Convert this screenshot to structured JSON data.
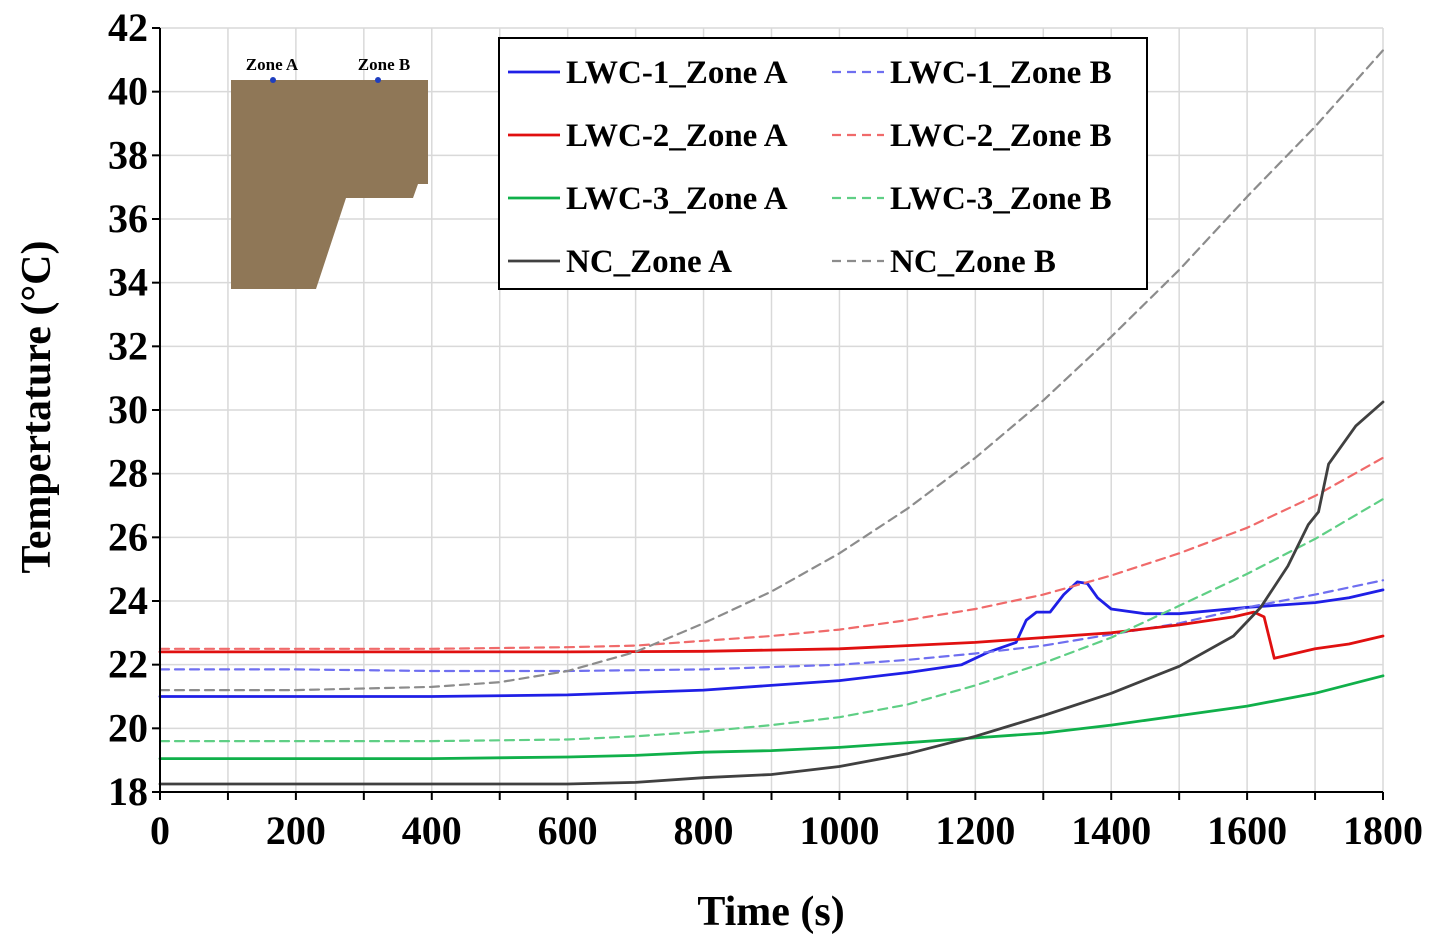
{
  "chart_data": {
    "type": "line",
    "xlabel": "Time (s)",
    "ylabel": "Tempertature (°C)",
    "xlim": [
      0,
      1800
    ],
    "ylim": [
      18,
      42
    ],
    "xticks": [
      0,
      200,
      400,
      600,
      800,
      1000,
      1200,
      1400,
      1600,
      1800
    ],
    "yticks": [
      18,
      20,
      22,
      24,
      26,
      28,
      30,
      32,
      34,
      36,
      38,
      40,
      42
    ],
    "grid": true,
    "legend_position": "top-right",
    "inset": {
      "zone_a_label": "Zone A",
      "zone_b_label": "Zone B",
      "fill_color": "#8F7757",
      "marker_color": "#1f3fbf"
    },
    "series": [
      {
        "name": "LWC-1_Zone A",
        "color": "#1f1fe6",
        "dash": "solid",
        "points": [
          [
            0,
            21.0
          ],
          [
            200,
            21.0
          ],
          [
            400,
            21.0
          ],
          [
            600,
            21.05
          ],
          [
            800,
            21.2
          ],
          [
            1000,
            21.5
          ],
          [
            1100,
            21.75
          ],
          [
            1180,
            22.0
          ],
          [
            1220,
            22.4
          ],
          [
            1260,
            22.7
          ],
          [
            1275,
            23.4
          ],
          [
            1290,
            23.65
          ],
          [
            1310,
            23.65
          ],
          [
            1330,
            24.2
          ],
          [
            1350,
            24.6
          ],
          [
            1365,
            24.55
          ],
          [
            1380,
            24.1
          ],
          [
            1400,
            23.75
          ],
          [
            1450,
            23.6
          ],
          [
            1500,
            23.6
          ],
          [
            1600,
            23.8
          ],
          [
            1700,
            23.95
          ],
          [
            1750,
            24.1
          ],
          [
            1800,
            24.35
          ]
        ]
      },
      {
        "name": "LWC-1_Zone B",
        "color": "#6f6ff0",
        "dash": "dashed",
        "points": [
          [
            0,
            21.85
          ],
          [
            200,
            21.85
          ],
          [
            400,
            21.8
          ],
          [
            600,
            21.8
          ],
          [
            800,
            21.85
          ],
          [
            1000,
            22.0
          ],
          [
            1100,
            22.15
          ],
          [
            1200,
            22.35
          ],
          [
            1300,
            22.6
          ],
          [
            1400,
            22.95
          ],
          [
            1500,
            23.3
          ],
          [
            1600,
            23.8
          ],
          [
            1700,
            24.2
          ],
          [
            1800,
            24.65
          ]
        ]
      },
      {
        "name": "LWC-2_Zone A",
        "color": "#e01010",
        "dash": "solid",
        "points": [
          [
            0,
            22.4
          ],
          [
            200,
            22.4
          ],
          [
            400,
            22.4
          ],
          [
            600,
            22.4
          ],
          [
            800,
            22.42
          ],
          [
            1000,
            22.5
          ],
          [
            1200,
            22.7
          ],
          [
            1400,
            23.0
          ],
          [
            1500,
            23.25
          ],
          [
            1580,
            23.5
          ],
          [
            1610,
            23.65
          ],
          [
            1625,
            23.5
          ],
          [
            1640,
            22.2
          ],
          [
            1660,
            22.3
          ],
          [
            1700,
            22.5
          ],
          [
            1750,
            22.65
          ],
          [
            1800,
            22.9
          ]
        ]
      },
      {
        "name": "LWC-2_Zone B",
        "color": "#f06a6a",
        "dash": "dashed",
        "points": [
          [
            0,
            22.5
          ],
          [
            200,
            22.5
          ],
          [
            400,
            22.5
          ],
          [
            600,
            22.55
          ],
          [
            700,
            22.6
          ],
          [
            800,
            22.75
          ],
          [
            900,
            22.9
          ],
          [
            1000,
            23.1
          ],
          [
            1100,
            23.4
          ],
          [
            1200,
            23.75
          ],
          [
            1300,
            24.2
          ],
          [
            1400,
            24.8
          ],
          [
            1500,
            25.5
          ],
          [
            1600,
            26.3
          ],
          [
            1700,
            27.3
          ],
          [
            1800,
            28.5
          ]
        ]
      },
      {
        "name": "LWC-3_Zone A",
        "color": "#10b04a",
        "dash": "solid",
        "points": [
          [
            0,
            19.05
          ],
          [
            200,
            19.05
          ],
          [
            400,
            19.05
          ],
          [
            600,
            19.1
          ],
          [
            700,
            19.15
          ],
          [
            800,
            19.25
          ],
          [
            900,
            19.3
          ],
          [
            1000,
            19.4
          ],
          [
            1100,
            19.55
          ],
          [
            1200,
            19.7
          ],
          [
            1300,
            19.85
          ],
          [
            1400,
            20.1
          ],
          [
            1500,
            20.4
          ],
          [
            1600,
            20.7
          ],
          [
            1700,
            21.1
          ],
          [
            1800,
            21.65
          ]
        ]
      },
      {
        "name": "LWC-3_Zone B",
        "color": "#5fcf85",
        "dash": "dashed",
        "points": [
          [
            0,
            19.6
          ],
          [
            200,
            19.6
          ],
          [
            400,
            19.6
          ],
          [
            600,
            19.65
          ],
          [
            700,
            19.75
          ],
          [
            800,
            19.9
          ],
          [
            900,
            20.1
          ],
          [
            1000,
            20.35
          ],
          [
            1100,
            20.75
          ],
          [
            1200,
            21.35
          ],
          [
            1300,
            22.05
          ],
          [
            1400,
            22.85
          ],
          [
            1500,
            23.85
          ],
          [
            1600,
            24.85
          ],
          [
            1700,
            25.95
          ],
          [
            1800,
            27.2
          ]
        ]
      },
      {
        "name": "NC_Zone A",
        "color": "#404040",
        "dash": "solid",
        "points": [
          [
            0,
            18.25
          ],
          [
            200,
            18.25
          ],
          [
            400,
            18.25
          ],
          [
            600,
            18.25
          ],
          [
            700,
            18.3
          ],
          [
            800,
            18.45
          ],
          [
            900,
            18.55
          ],
          [
            1000,
            18.8
          ],
          [
            1100,
            19.2
          ],
          [
            1200,
            19.75
          ],
          [
            1300,
            20.4
          ],
          [
            1400,
            21.1
          ],
          [
            1500,
            21.95
          ],
          [
            1580,
            22.9
          ],
          [
            1620,
            23.8
          ],
          [
            1660,
            25.1
          ],
          [
            1690,
            26.4
          ],
          [
            1705,
            26.8
          ],
          [
            1720,
            28.3
          ],
          [
            1760,
            29.5
          ],
          [
            1800,
            30.25
          ]
        ]
      },
      {
        "name": "NC_Zone B",
        "color": "#8c8c8c",
        "dash": "dashed",
        "points": [
          [
            0,
            21.2
          ],
          [
            200,
            21.2
          ],
          [
            400,
            21.3
          ],
          [
            500,
            21.45
          ],
          [
            600,
            21.8
          ],
          [
            700,
            22.4
          ],
          [
            800,
            23.3
          ],
          [
            900,
            24.3
          ],
          [
            1000,
            25.5
          ],
          [
            1100,
            26.9
          ],
          [
            1200,
            28.5
          ],
          [
            1300,
            30.3
          ],
          [
            1400,
            32.3
          ],
          [
            1500,
            34.4
          ],
          [
            1600,
            36.7
          ],
          [
            1700,
            38.9
          ],
          [
            1800,
            41.3
          ]
        ]
      }
    ]
  }
}
